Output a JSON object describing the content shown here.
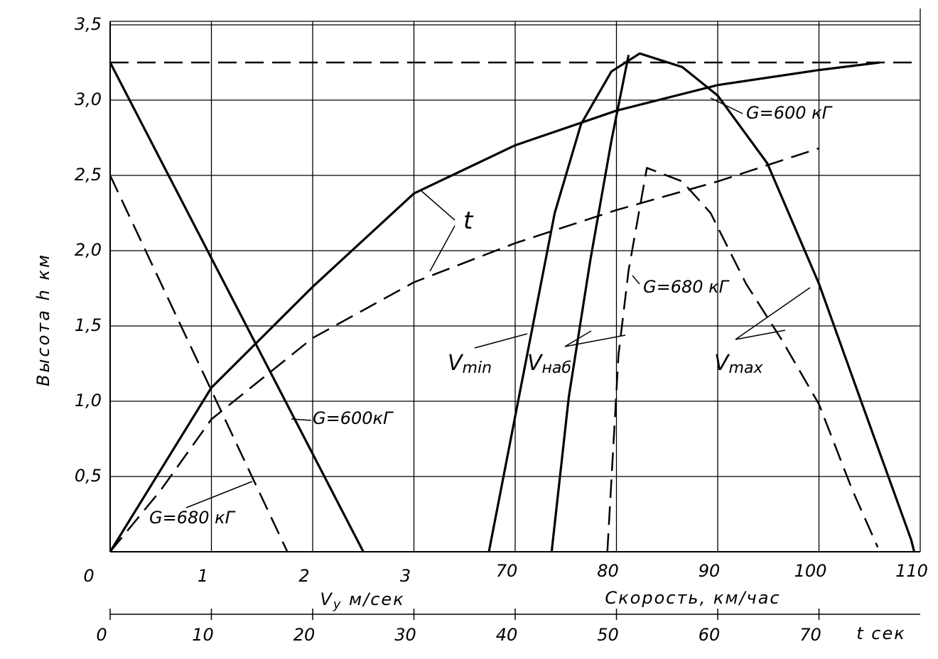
{
  "chart_data": {
    "type": "line",
    "ylabel": "Высота h км",
    "ylim": [
      0,
      3.5
    ],
    "yticks": [
      {
        "value": 0.5,
        "label": "0,5"
      },
      {
        "value": 1.0,
        "label": "1,0"
      },
      {
        "value": 1.5,
        "label": "1,5"
      },
      {
        "value": 2.0,
        "label": "2,0"
      },
      {
        "value": 2.5,
        "label": "2,5"
      },
      {
        "value": 3.0,
        "label": "3,0"
      },
      {
        "value": 3.5,
        "label": "3,5"
      }
    ],
    "grid": true,
    "x_axes": [
      {
        "id": "vy",
        "label_parts": [
          {
            "text": "V"
          },
          {
            "text": "y",
            "sub": true
          },
          {
            "text": " м/сек"
          }
        ],
        "xlim": [
          0,
          8
        ],
        "xticks": [
          0,
          1,
          2,
          3
        ]
      },
      {
        "id": "speed",
        "label_parts": [
          {
            "text": "Скорость, км/час"
          }
        ],
        "xlim": [
          30,
          110
        ],
        "xticks": [
          70,
          80,
          90,
          100,
          110
        ]
      },
      {
        "id": "t",
        "label_parts": [
          {
            "text": "t сек"
          }
        ],
        "xlim": [
          0,
          80
        ],
        "xticks": [
          0,
          10,
          20,
          30,
          40,
          50,
          60,
          70
        ]
      }
    ],
    "series": [
      {
        "axis": "vy",
        "color": "#000000",
        "dashed": false,
        "x": [
          0,
          2.5
        ],
        "values": [
          3.25,
          0
        ]
      },
      {
        "axis": "vy",
        "color": "#000000",
        "dashed": true,
        "x": [
          0,
          1.75
        ],
        "values": [
          2.5,
          0
        ]
      },
      {
        "axis": "t",
        "color": "#000000",
        "dashed": false,
        "x": [
          0,
          10,
          20,
          30,
          40,
          50,
          60,
          70,
          76
        ],
        "values": [
          0,
          1.09,
          1.76,
          2.38,
          2.7,
          2.93,
          3.1,
          3.2,
          3.25
        ]
      },
      {
        "axis": "t",
        "color": "#000000",
        "dashed": true,
        "x": [
          0,
          5,
          10,
          20,
          30,
          40,
          50,
          60,
          70
        ],
        "values": [
          0,
          0.41,
          0.88,
          1.42,
          1.79,
          2.05,
          2.27,
          2.46,
          2.68
        ]
      },
      {
        "axis": "speed",
        "color": "#000000",
        "dashed": false,
        "x": [
          67.4,
          70,
          73.9,
          76.5,
          79.5,
          82.3,
          86.5,
          90,
          94.9,
          100,
          104,
          109.1,
          109.4
        ],
        "values": [
          0,
          0.9,
          2.25,
          2.84,
          3.19,
          3.31,
          3.22,
          3.03,
          2.58,
          1.78,
          1.03,
          0.08,
          0
        ]
      },
      {
        "axis": "speed",
        "color": "#000000",
        "dashed": false,
        "x": [
          73.6,
          75.3,
          77.4,
          79.5,
          81.2
        ],
        "values": [
          0,
          1.03,
          1.93,
          2.73,
          3.3
        ]
      },
      {
        "axis": "speed",
        "color": "#000000",
        "dashed": true,
        "x": [
          79.1,
          80.2,
          81.2,
          83,
          86.5,
          89.3,
          92.8,
          96.3,
          100,
          103.3,
          105.8
        ],
        "values": [
          0,
          1.31,
          1.87,
          2.55,
          2.46,
          2.25,
          1.78,
          1.41,
          0.98,
          0.41,
          0.03
        ]
      },
      {
        "axis": "speed",
        "color": "#000000",
        "dashed": true,
        "x": [
          30,
          110
        ],
        "values": [
          3.25,
          3.25
        ]
      }
    ],
    "annotations": [
      {
        "parts": [
          {
            "text": "G=600кГ"
          }
        ]
      },
      {
        "parts": [
          {
            "text": "G=600 кГ"
          }
        ]
      },
      {
        "parts": [
          {
            "text": "G=680 кГ"
          }
        ]
      },
      {
        "parts": [
          {
            "text": "G=680 кГ"
          }
        ]
      },
      {
        "parts": [
          {
            "text": "t"
          }
        ]
      },
      {
        "parts": [
          {
            "text": "V"
          },
          {
            "text": "min",
            "sub": true
          }
        ]
      },
      {
        "parts": [
          {
            "text": "V"
          },
          {
            "text": "наб",
            "sub": true
          }
        ]
      },
      {
        "parts": [
          {
            "text": "V"
          },
          {
            "text": "max",
            "sub": true
          }
        ]
      }
    ]
  }
}
